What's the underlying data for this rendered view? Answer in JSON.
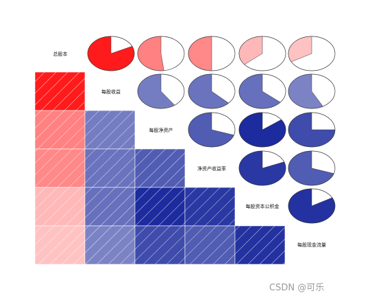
{
  "chart_data": {
    "type": "heatmap",
    "title": "",
    "variables": [
      "总股本",
      "每股收益",
      "每股净资产",
      "净资产收益率",
      "每股资本公积金",
      "每股现金流量"
    ],
    "lower_panel": "shade",
    "upper_panel": "pie",
    "correlations": [
      [
        1.0,
        0.82,
        0.52,
        0.5,
        0.36,
        0.33
      ],
      [
        0.82,
        1.0,
        0.6,
        0.63,
        0.64,
        0.58
      ],
      [
        0.52,
        0.6,
        1.0,
        0.7,
        0.85,
        0.75
      ],
      [
        0.5,
        0.63,
        0.7,
        1.0,
        0.81,
        0.7
      ],
      [
        0.36,
        0.64,
        0.85,
        0.81,
        1.0,
        0.83
      ],
      [
        0.33,
        0.58,
        0.75,
        0.7,
        0.83,
        1.0
      ]
    ],
    "colors": {
      "positive_strong": "#ff0000",
      "negative_strong": "#0b1b95",
      "pie_outline": "#333333"
    }
  },
  "watermark": "CSDN @可乐"
}
